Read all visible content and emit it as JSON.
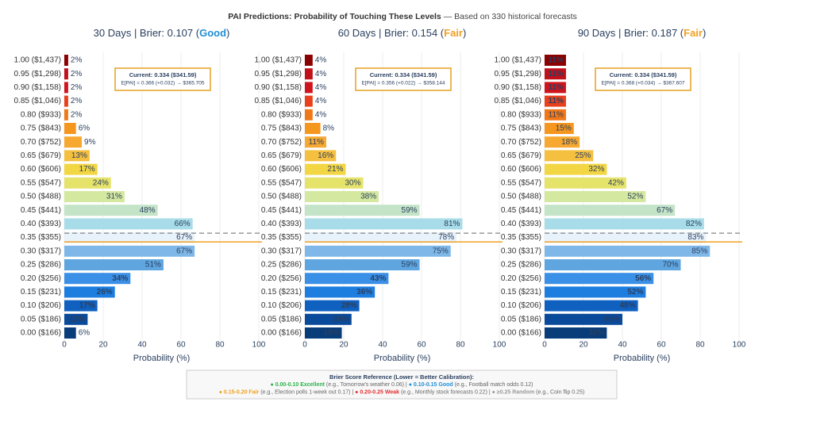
{
  "title": "PAI Predictions: Probability of Touching These Levels",
  "title_note": " — Based on 330 historical forecasts",
  "chart_data": [
    {
      "type": "bar",
      "orientation": "horizontal",
      "subtitle_parts": [
        "30 Days | Brier: 0.107 (",
        "Good",
        ")"
      ],
      "rating_color": "#1f8fd6",
      "categories": [
        "1.00 ($1,437)",
        "0.95 ($1,298)",
        "0.90 ($1,158)",
        "0.85 ($1,046)",
        "0.80 ($933)",
        "0.75 ($843)",
        "0.70 ($752)",
        "0.65 ($679)",
        "0.60 ($606)",
        "0.55 ($547)",
        "0.50 ($488)",
        "0.45 ($441)",
        "0.40 ($393)",
        "0.35 ($355)",
        "0.30 ($317)",
        "0.25 ($286)",
        "0.20 ($256)",
        "0.15 ($231)",
        "0.10 ($206)",
        "0.05 ($186)",
        "0.00 ($166)"
      ],
      "values": [
        2,
        2,
        2,
        2,
        2,
        6,
        9,
        13,
        17,
        24,
        31,
        48,
        66,
        67,
        67,
        51,
        34,
        26,
        17,
        12,
        6
      ],
      "value_labels": [
        "2%",
        "2%",
        "2%",
        "2%",
        "2%",
        "6%",
        "9%",
        "13%",
        "17%",
        "24%",
        "31%",
        "48%",
        "66%",
        "67%",
        "67%",
        "51%",
        "34%",
        "26%",
        "17%",
        "12%",
        "6%"
      ],
      "colors": [
        "#8b0000",
        "#c0101a",
        "#d0141e",
        "#e8401c",
        "#f07818",
        "#f5961e",
        "#f7a830",
        "#f5c040",
        "#f2d643",
        "#e6e36a",
        "#d4e8a0",
        "#c4e4c8",
        "#a8dce8",
        "#e8f2fb",
        "#7fb8e8",
        "#5fa6e0",
        "#3a8fe6",
        "#1e7ee0",
        "#1060c0",
        "#0a4a9a",
        "#083d7a"
      ],
      "annotation": [
        "Current: 0.334 ($341.59)",
        "E[PAI] = 0.366 (+0.032) → $365.705"
      ],
      "xlim": [
        0,
        100
      ],
      "xticks": [
        0,
        20,
        40,
        60,
        80,
        100
      ],
      "xlabel": "Probability (%)",
      "grid": true
    },
    {
      "type": "bar",
      "orientation": "horizontal",
      "subtitle_parts": [
        "60 Days | Brier: 0.154 (",
        "Fair",
        ")"
      ],
      "rating_color": "#f0a020",
      "categories": [
        "1.00 ($1,437)",
        "0.95 ($1,298)",
        "0.90 ($1,158)",
        "0.85 ($1,046)",
        "0.80 ($933)",
        "0.75 ($843)",
        "0.70 ($752)",
        "0.65 ($679)",
        "0.60 ($606)",
        "0.55 ($547)",
        "0.50 ($488)",
        "0.45 ($441)",
        "0.40 ($393)",
        "0.35 ($355)",
        "0.30 ($317)",
        "0.25 ($286)",
        "0.20 ($256)",
        "0.15 ($231)",
        "0.10 ($206)",
        "0.05 ($186)",
        "0.00 ($166)"
      ],
      "values": [
        4,
        4,
        4,
        4,
        4,
        8,
        11,
        16,
        21,
        30,
        38,
        59,
        81,
        78,
        75,
        59,
        43,
        36,
        28,
        24,
        19
      ],
      "value_labels": [
        "4%",
        "4%",
        "4%",
        "4%",
        "4%",
        "8%",
        "11%",
        "16%",
        "21%",
        "30%",
        "38%",
        "59%",
        "81%",
        "78%",
        "75%",
        "59%",
        "43%",
        "36%",
        "28%",
        "24%",
        "19%"
      ],
      "colors": [
        "#8b0000",
        "#c0101a",
        "#d0141e",
        "#e8401c",
        "#f07818",
        "#f5961e",
        "#f7a830",
        "#f5c040",
        "#f2d643",
        "#e6e36a",
        "#d4e8a0",
        "#c4e4c8",
        "#a8dce8",
        "#e8f2fb",
        "#7fb8e8",
        "#5fa6e0",
        "#3a8fe6",
        "#1e7ee0",
        "#1060c0",
        "#0a4a9a",
        "#083d7a"
      ],
      "annotation": [
        "Current: 0.334 ($341.59)",
        "E[PAI] = 0.356 (+0.022) → $358.144"
      ],
      "xlim": [
        0,
        100
      ],
      "xticks": [
        0,
        20,
        40,
        60,
        80,
        100
      ],
      "xlabel": "Probability (%)",
      "grid": true
    },
    {
      "type": "bar",
      "orientation": "horizontal",
      "subtitle_parts": [
        "90 Days | Brier: 0.187 (",
        "Fair",
        ")"
      ],
      "rating_color": "#f0a020",
      "categories": [
        "1.00 ($1,437)",
        "0.95 ($1,298)",
        "0.90 ($1,158)",
        "0.85 ($1,046)",
        "0.80 ($933)",
        "0.75 ($843)",
        "0.70 ($752)",
        "0.65 ($679)",
        "0.60 ($606)",
        "0.55 ($547)",
        "0.50 ($488)",
        "0.45 ($441)",
        "0.40 ($393)",
        "0.35 ($355)",
        "0.30 ($317)",
        "0.25 ($286)",
        "0.20 ($256)",
        "0.15 ($231)",
        "0.10 ($206)",
        "0.05 ($186)",
        "0.00 ($166)"
      ],
      "values": [
        11,
        11,
        11,
        11,
        11,
        15,
        18,
        25,
        32,
        42,
        52,
        67,
        82,
        83,
        85,
        70,
        56,
        52,
        48,
        40,
        32
      ],
      "value_labels": [
        "11%",
        "11%",
        "11%",
        "11%",
        "11%",
        "15%",
        "18%",
        "25%",
        "32%",
        "42%",
        "52%",
        "67%",
        "82%",
        "83%",
        "85%",
        "70%",
        "56%",
        "52%",
        "48%",
        "40%",
        "32%"
      ],
      "colors": [
        "#8b0000",
        "#c0101a",
        "#d0141e",
        "#e8401c",
        "#f07818",
        "#f5961e",
        "#f7a830",
        "#f5c040",
        "#f2d643",
        "#e6e36a",
        "#d4e8a0",
        "#c4e4c8",
        "#a8dce8",
        "#e8f2fb",
        "#7fb8e8",
        "#5fa6e0",
        "#3a8fe6",
        "#1e7ee0",
        "#1060c0",
        "#0a4a9a",
        "#083d7a"
      ],
      "annotation": [
        "Current: 0.334 ($341.59)",
        "E[PAI] = 0.368 (+0.034) → $367.607"
      ],
      "xlim": [
        0,
        100
      ],
      "xticks": [
        0,
        20,
        40,
        60,
        80,
        100
      ],
      "xlabel": "Probability (%)",
      "grid": true
    }
  ],
  "reference": {
    "title": "Brier Score Reference (Lower = Better Calibration):",
    "lines": [
      [
        {
          "label": "● 0.00-0.10 Excellent",
          "color": "#2bb24c",
          "note": " (e.g., Tomorrow's weather 0.06) | "
        },
        {
          "label": "● 0.10-0.15 Good",
          "color": "#1f8fd6",
          "note": " (e.g., Football match odds 0.12)"
        }
      ],
      [
        {
          "label": "● 0.15-0.20 Fair",
          "color": "#f0a020",
          "note": " (e.g., Election polls 1-week out 0.17) | "
        },
        {
          "label": "● 0.20-0.25 Weak",
          "color": "#e03030",
          "note": " (e.g., Monthly stock forecasts 0.22) | "
        },
        {
          "label": "● ≥0.25 Random",
          "color": "#999999",
          "note": " (e.g., Coin flip 0.25)"
        }
      ]
    ]
  }
}
